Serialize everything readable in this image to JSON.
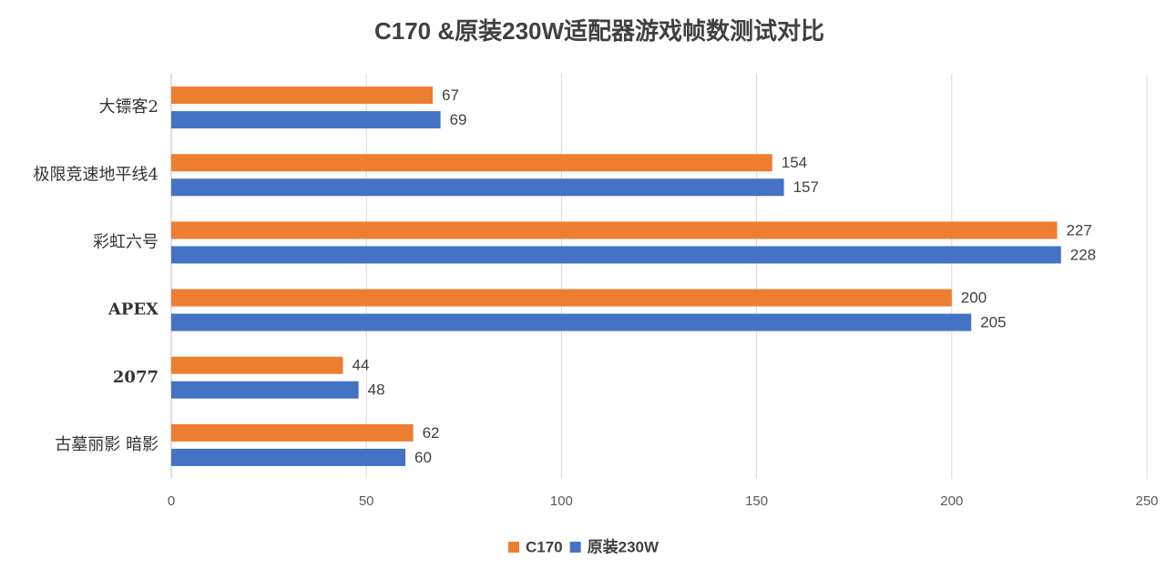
{
  "chart_data": {
    "type": "bar",
    "orientation": "horizontal",
    "title": "C170 &原装230W适配器游戏帧数测试对比",
    "categories": [
      "大镖客2",
      "极限竞速地平线4",
      "彩虹六号",
      "APEX",
      "2077",
      "古墓丽影 暗影"
    ],
    "series": [
      {
        "name": "C170",
        "color": "#ed7d31",
        "values": [
          67,
          154,
          227,
          200,
          44,
          62
        ]
      },
      {
        "name": "原装230W",
        "color": "#4472c4",
        "values": [
          69,
          157,
          228,
          205,
          48,
          60
        ]
      }
    ],
    "xlim": [
      0,
      250
    ],
    "xticks": [
      0,
      50,
      100,
      150,
      200,
      250
    ],
    "grid": true,
    "legend": "bottom"
  }
}
